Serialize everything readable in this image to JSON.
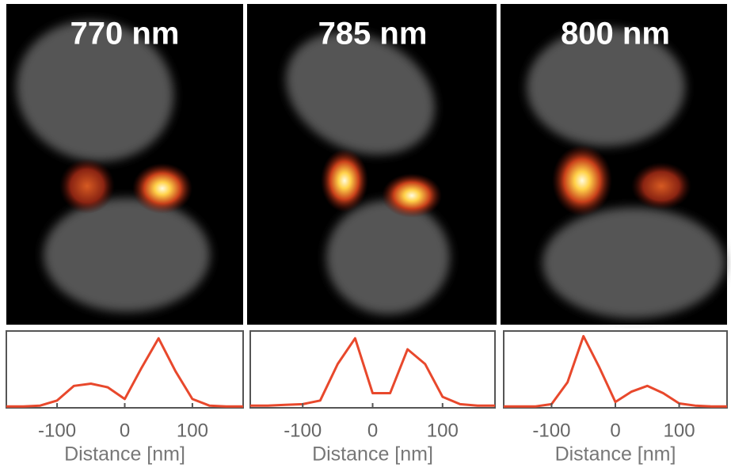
{
  "chart_data": [
    {
      "type": "line",
      "title": "770 nm",
      "xlabel": "Distance [nm]",
      "color": "#e8482c",
      "x": [
        -175,
        -150,
        -125,
        -100,
        -75,
        -50,
        -25,
        0,
        25,
        50,
        75,
        100,
        125,
        150,
        175
      ],
      "values": [
        0.02,
        0.02,
        0.03,
        0.1,
        0.3,
        0.33,
        0.28,
        0.12,
        0.55,
        0.95,
        0.5,
        0.12,
        0.03,
        0.02,
        0.02
      ],
      "xlim": [
        -175,
        175
      ],
      "ylim": [
        0,
        1.05
      ],
      "xticks": [
        -100,
        0,
        100
      ]
    },
    {
      "type": "line",
      "title": "785 nm",
      "xlabel": "Distance [nm]",
      "color": "#e8482c",
      "x": [
        -175,
        -150,
        -125,
        -100,
        -75,
        -50,
        -25,
        0,
        25,
        50,
        75,
        100,
        125,
        150,
        175
      ],
      "values": [
        0.03,
        0.03,
        0.04,
        0.05,
        0.1,
        0.6,
        0.95,
        0.2,
        0.2,
        0.8,
        0.6,
        0.15,
        0.05,
        0.03,
        0.03
      ],
      "xlim": [
        -175,
        175
      ],
      "ylim": [
        0,
        1.05
      ],
      "xticks": [
        -100,
        0,
        100
      ]
    },
    {
      "type": "line",
      "title": "800 nm",
      "xlabel": "Distance [nm]",
      "color": "#e8482c",
      "x": [
        -175,
        -150,
        -125,
        -100,
        -75,
        -50,
        -25,
        0,
        25,
        50,
        75,
        100,
        125,
        150,
        175
      ],
      "values": [
        0.02,
        0.02,
        0.02,
        0.05,
        0.35,
        0.98,
        0.55,
        0.08,
        0.22,
        0.3,
        0.2,
        0.06,
        0.03,
        0.02,
        0.02
      ],
      "xlim": [
        -175,
        175
      ],
      "ylim": [
        0,
        1.05
      ],
      "xticks": [
        -100,
        0,
        100
      ]
    }
  ]
}
